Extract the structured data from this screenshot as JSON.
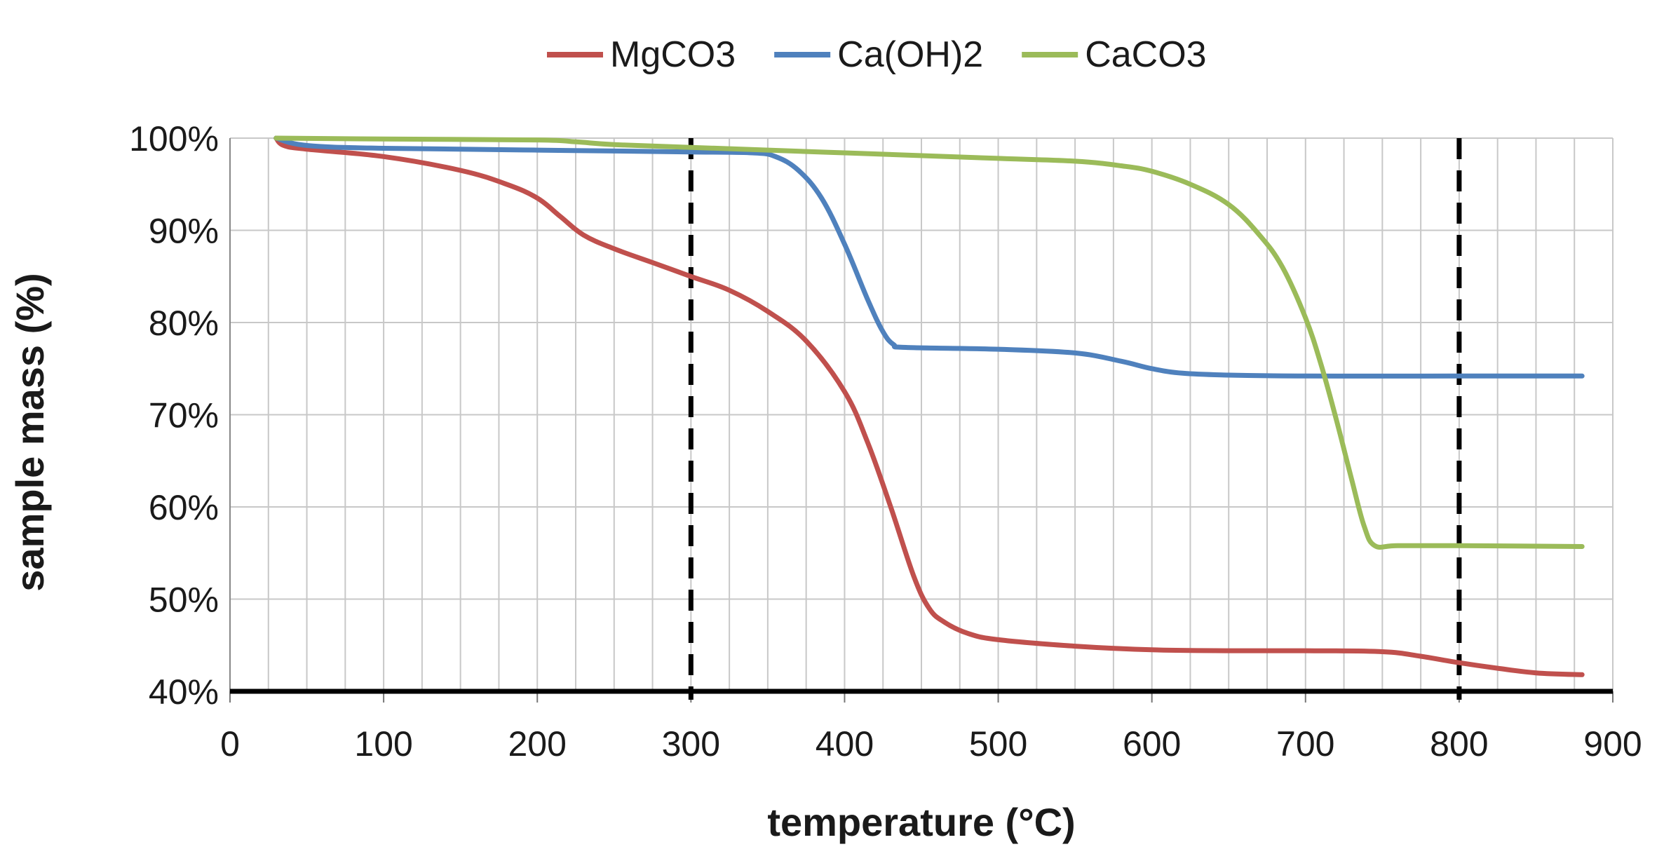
{
  "chart_data": {
    "type": "line",
    "title": "",
    "xlabel": "temperature (°C)",
    "ylabel": "sample mass (%)",
    "xlim": [
      0,
      900
    ],
    "ylim": [
      40,
      100
    ],
    "x_ticks": [
      0,
      100,
      200,
      300,
      400,
      500,
      600,
      700,
      800,
      900
    ],
    "x_tick_labels": [
      "0",
      "100",
      "200",
      "300",
      "400",
      "500",
      "600",
      "700",
      "800",
      "900"
    ],
    "x_minor_step": 25,
    "y_ticks": [
      40,
      50,
      60,
      70,
      80,
      90,
      100
    ],
    "y_tick_labels": [
      "40%",
      "50%",
      "60%",
      "70%",
      "80%",
      "90%",
      "100%"
    ],
    "grid": true,
    "legend_position": "top-center",
    "reference_lines": [
      {
        "axis": "x",
        "value": 300,
        "style": "dashed",
        "color": "#000000"
      },
      {
        "axis": "x",
        "value": 800,
        "style": "dashed",
        "color": "#000000"
      },
      {
        "axis": "y",
        "value": 40,
        "style": "solid",
        "color": "#000000"
      }
    ],
    "series": [
      {
        "name": "MgCO3",
        "color": "#c0504d",
        "points": [
          [
            30,
            100
          ],
          [
            35,
            99.2
          ],
          [
            50,
            98.8
          ],
          [
            100,
            98.0
          ],
          [
            150,
            96.5
          ],
          [
            180,
            95.0
          ],
          [
            200,
            93.5
          ],
          [
            215,
            91.5
          ],
          [
            230,
            89.5
          ],
          [
            250,
            88.0
          ],
          [
            275,
            86.5
          ],
          [
            300,
            85.0
          ],
          [
            325,
            83.5
          ],
          [
            350,
            81.2
          ],
          [
            375,
            78.0
          ],
          [
            400,
            72.5
          ],
          [
            415,
            67.0
          ],
          [
            430,
            60.0
          ],
          [
            445,
            52.5
          ],
          [
            455,
            49.0
          ],
          [
            465,
            47.5
          ],
          [
            480,
            46.3
          ],
          [
            500,
            45.6
          ],
          [
            550,
            44.9
          ],
          [
            600,
            44.5
          ],
          [
            650,
            44.4
          ],
          [
            700,
            44.4
          ],
          [
            750,
            44.3
          ],
          [
            775,
            43.8
          ],
          [
            800,
            43.1
          ],
          [
            825,
            42.5
          ],
          [
            850,
            42.0
          ],
          [
            880,
            41.8
          ]
        ]
      },
      {
        "name": "Ca(OH)2",
        "color": "#4f81bd",
        "points": [
          [
            30,
            100
          ],
          [
            50,
            99.2
          ],
          [
            100,
            98.9
          ],
          [
            200,
            98.7
          ],
          [
            300,
            98.5
          ],
          [
            340,
            98.4
          ],
          [
            355,
            98.0
          ],
          [
            370,
            96.5
          ],
          [
            385,
            93.5
          ],
          [
            400,
            88.5
          ],
          [
            415,
            82.5
          ],
          [
            425,
            79.0
          ],
          [
            432,
            77.6
          ],
          [
            440,
            77.3
          ],
          [
            500,
            77.1
          ],
          [
            550,
            76.7
          ],
          [
            580,
            75.8
          ],
          [
            600,
            75.0
          ],
          [
            620,
            74.5
          ],
          [
            650,
            74.3
          ],
          [
            700,
            74.2
          ],
          [
            800,
            74.2
          ],
          [
            880,
            74.2
          ]
        ]
      },
      {
        "name": "CaCO3",
        "color": "#9bbb59",
        "points": [
          [
            30,
            100
          ],
          [
            100,
            99.9
          ],
          [
            200,
            99.8
          ],
          [
            225,
            99.6
          ],
          [
            250,
            99.3
          ],
          [
            300,
            99.0
          ],
          [
            400,
            98.4
          ],
          [
            500,
            97.8
          ],
          [
            550,
            97.5
          ],
          [
            580,
            97.0
          ],
          [
            600,
            96.4
          ],
          [
            625,
            95.0
          ],
          [
            650,
            92.8
          ],
          [
            670,
            89.5
          ],
          [
            685,
            86.0
          ],
          [
            700,
            80.5
          ],
          [
            710,
            75.5
          ],
          [
            720,
            69.5
          ],
          [
            730,
            63.0
          ],
          [
            738,
            58.0
          ],
          [
            745,
            55.8
          ],
          [
            760,
            55.8
          ],
          [
            800,
            55.8
          ],
          [
            880,
            55.7
          ]
        ]
      }
    ]
  }
}
